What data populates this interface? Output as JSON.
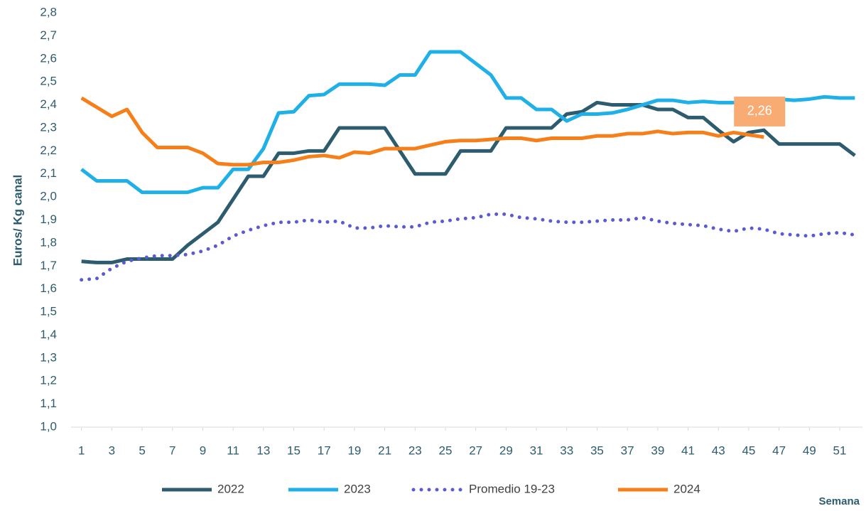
{
  "chart_data": {
    "type": "line",
    "x": [
      1,
      2,
      3,
      4,
      5,
      6,
      7,
      8,
      9,
      10,
      11,
      12,
      13,
      14,
      15,
      16,
      17,
      18,
      19,
      20,
      21,
      22,
      23,
      24,
      25,
      26,
      27,
      28,
      29,
      30,
      31,
      32,
      33,
      34,
      35,
      36,
      37,
      38,
      39,
      40,
      41,
      42,
      43,
      44,
      45,
      46,
      47,
      48,
      49,
      50,
      51,
      52
    ],
    "xlim": [
      0.5,
      52.5
    ],
    "xticks": [
      1,
      3,
      5,
      7,
      9,
      11,
      13,
      15,
      17,
      19,
      21,
      23,
      25,
      27,
      29,
      31,
      33,
      35,
      37,
      39,
      41,
      43,
      45,
      47,
      49,
      51
    ],
    "ylim": [
      1.0,
      2.8
    ],
    "yticks": [
      {
        "value": 1.0,
        "label": "1,0"
      },
      {
        "value": 1.1,
        "label": "1,1"
      },
      {
        "value": 1.2,
        "label": "1,2"
      },
      {
        "value": 1.3,
        "label": "1,3"
      },
      {
        "value": 1.4,
        "label": "1,4"
      },
      {
        "value": 1.5,
        "label": "1,5"
      },
      {
        "value": 1.6,
        "label": "1,6"
      },
      {
        "value": 1.7,
        "label": "1,7"
      },
      {
        "value": 1.8,
        "label": "1,8"
      },
      {
        "value": 1.9,
        "label": "1,9"
      },
      {
        "value": 2.0,
        "label": "2,0"
      },
      {
        "value": 2.1,
        "label": "2,1"
      },
      {
        "value": 2.2,
        "label": "2,2"
      },
      {
        "value": 2.3,
        "label": "2,3"
      },
      {
        "value": 2.4,
        "label": "2,4"
      },
      {
        "value": 2.5,
        "label": "2,5"
      },
      {
        "value": 2.6,
        "label": "2,6"
      },
      {
        "value": 2.7,
        "label": "2,7"
      },
      {
        "value": 2.8,
        "label": "2,8"
      }
    ],
    "ylabel": "Euros/ Kg canal",
    "xlabel": "Semana",
    "grid": false,
    "legend": "bottom",
    "series": [
      {
        "name": "2022",
        "color": "#2c5c6e",
        "dash": "solid",
        "values": [
          1.72,
          1.715,
          1.715,
          1.73,
          1.73,
          1.73,
          1.73,
          1.79,
          1.84,
          1.89,
          1.99,
          2.09,
          2.09,
          2.19,
          2.19,
          2.2,
          2.2,
          2.3,
          2.3,
          2.3,
          2.3,
          2.2,
          2.1,
          2.1,
          2.1,
          2.2,
          2.2,
          2.2,
          2.3,
          2.3,
          2.3,
          2.3,
          2.36,
          2.37,
          2.41,
          2.4,
          2.4,
          2.4,
          2.38,
          2.38,
          2.345,
          2.345,
          2.29,
          2.24,
          2.28,
          2.29,
          2.23,
          2.23,
          2.23,
          2.23,
          2.23,
          2.18
        ]
      },
      {
        "name": "2023",
        "color": "#1eb0e6",
        "dash": "solid",
        "values": [
          2.12,
          2.07,
          2.07,
          2.07,
          2.02,
          2.02,
          2.02,
          2.02,
          2.04,
          2.04,
          2.12,
          2.12,
          2.21,
          2.365,
          2.37,
          2.44,
          2.445,
          2.49,
          2.49,
          2.49,
          2.485,
          2.53,
          2.53,
          2.63,
          2.63,
          2.63,
          2.58,
          2.53,
          2.43,
          2.43,
          2.38,
          2.38,
          2.33,
          2.36,
          2.36,
          2.365,
          2.38,
          2.4,
          2.42,
          2.42,
          2.41,
          2.415,
          2.41,
          2.41,
          2.415,
          2.42,
          2.425,
          2.42,
          2.425,
          2.435,
          2.43,
          2.43
        ]
      },
      {
        "name": "Promedio 19-23",
        "color": "#5a5ad4",
        "dash": "dotted",
        "values": [
          1.64,
          1.645,
          1.69,
          1.72,
          1.735,
          1.745,
          1.745,
          1.75,
          1.765,
          1.79,
          1.83,
          1.855,
          1.875,
          1.89,
          1.89,
          1.9,
          1.89,
          1.895,
          1.865,
          1.865,
          1.875,
          1.87,
          1.87,
          1.89,
          1.895,
          1.905,
          1.91,
          1.925,
          1.925,
          1.91,
          1.905,
          1.895,
          1.89,
          1.89,
          1.895,
          1.9,
          1.9,
          1.91,
          1.895,
          1.885,
          1.88,
          1.875,
          1.86,
          1.85,
          1.865,
          1.86,
          1.84,
          1.835,
          1.83,
          1.84,
          1.845,
          1.835
        ]
      },
      {
        "name": "2024",
        "color": "#f77f1a",
        "dash": "solid",
        "values": [
          2.43,
          2.39,
          2.35,
          2.38,
          2.28,
          2.215,
          2.215,
          2.215,
          2.19,
          2.145,
          2.14,
          2.14,
          2.15,
          2.15,
          2.16,
          2.175,
          2.18,
          2.17,
          2.195,
          2.19,
          2.21,
          2.21,
          2.21,
          2.225,
          2.24,
          2.245,
          2.245,
          2.25,
          2.255,
          2.255,
          2.245,
          2.255,
          2.255,
          2.255,
          2.265,
          2.265,
          2.275,
          2.275,
          2.285,
          2.275,
          2.28,
          2.28,
          2.265,
          2.28,
          2.27,
          2.26,
          null,
          null,
          null,
          null,
          null,
          null
        ],
        "value_labels": [
          null,
          null,
          null,
          null,
          null,
          null,
          null,
          null,
          null,
          null,
          null,
          null,
          null,
          null,
          null,
          null,
          null,
          null,
          null,
          null,
          null,
          null,
          null,
          null,
          null,
          null,
          null,
          null,
          null,
          null,
          null,
          null,
          null,
          null,
          null,
          null,
          null,
          null,
          null,
          null,
          null,
          null,
          null,
          null,
          null,
          "2,26",
          null,
          null,
          null,
          null,
          null,
          null
        ]
      }
    ]
  }
}
